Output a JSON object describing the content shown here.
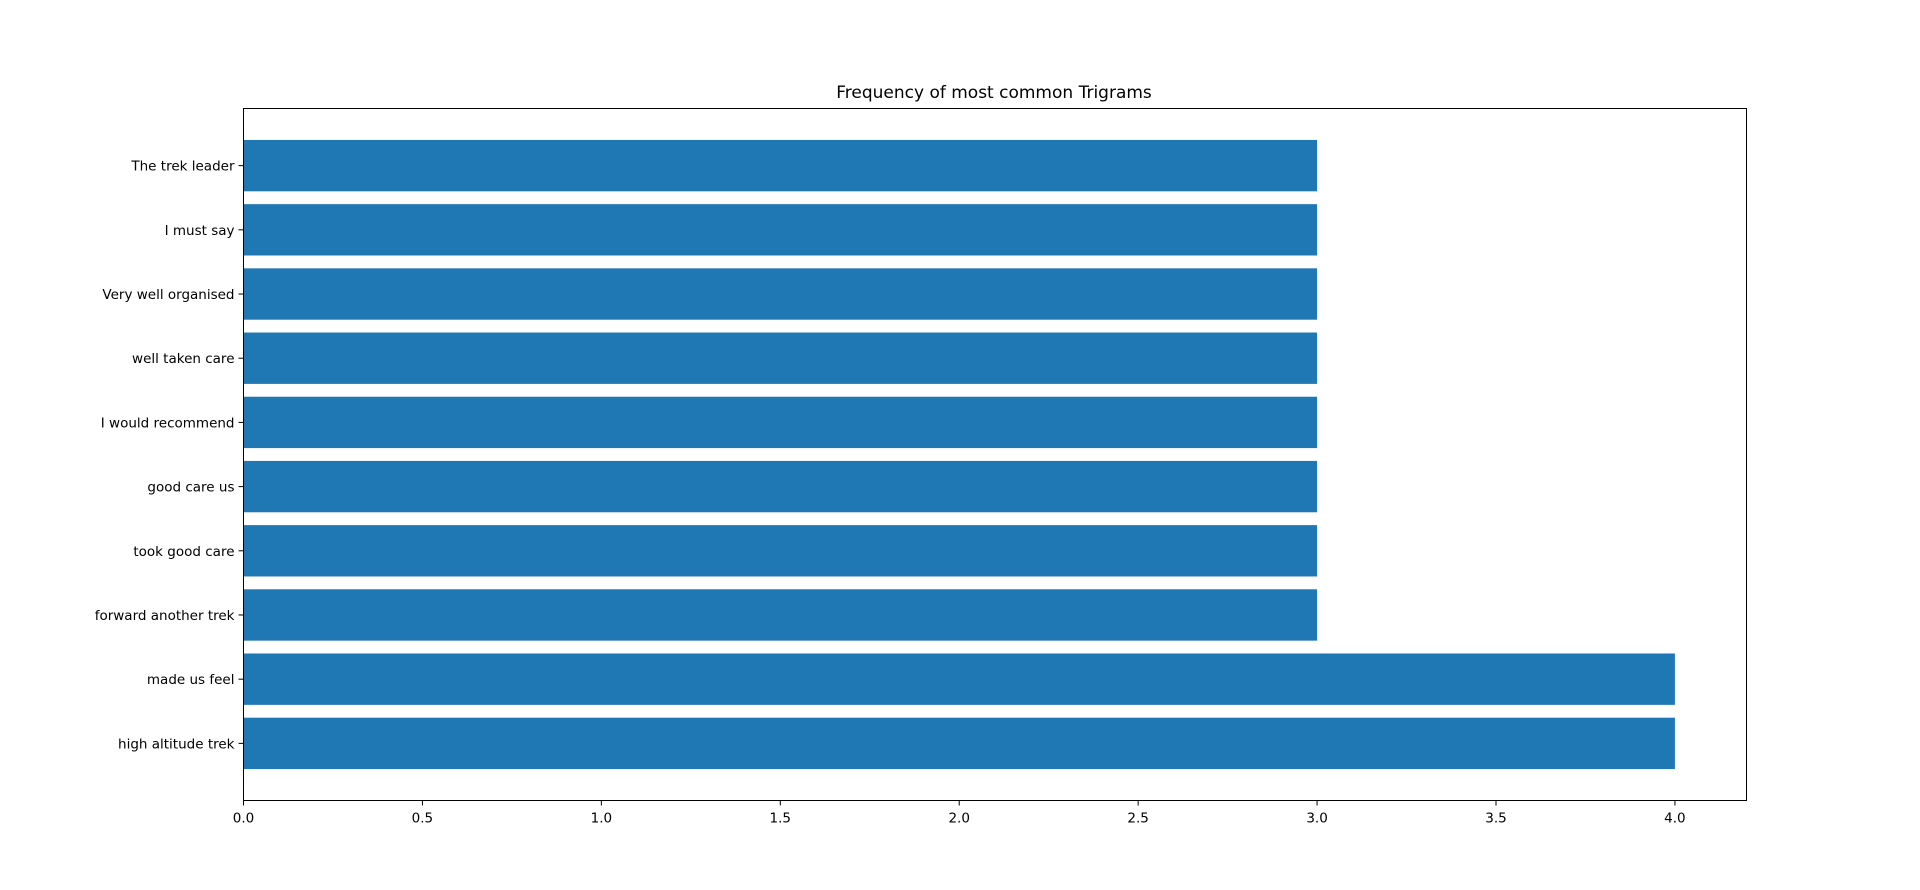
{
  "chart_data": {
    "type": "bar",
    "orientation": "horizontal",
    "title": "Frequency of most common Trigrams",
    "xlabel": "",
    "ylabel": "",
    "categories": [
      "high altitude trek",
      "made us feel",
      "forward another trek",
      "took good care",
      "good care us",
      "I would recommend",
      "well taken care",
      "Very well organised",
      "I must say",
      "The trek leader"
    ],
    "values": [
      4,
      4,
      3,
      3,
      3,
      3,
      3,
      3,
      3,
      3
    ],
    "xlim": [
      0,
      4.2
    ],
    "xticks": [
      "0.0",
      "0.5",
      "1.0",
      "1.5",
      "2.0",
      "2.5",
      "3.0",
      "3.5",
      "4.0"
    ],
    "grid": false,
    "legend": "none",
    "colors": {
      "bar": "#1f77b4",
      "axis": "#000000",
      "background": "#ffffff"
    }
  }
}
